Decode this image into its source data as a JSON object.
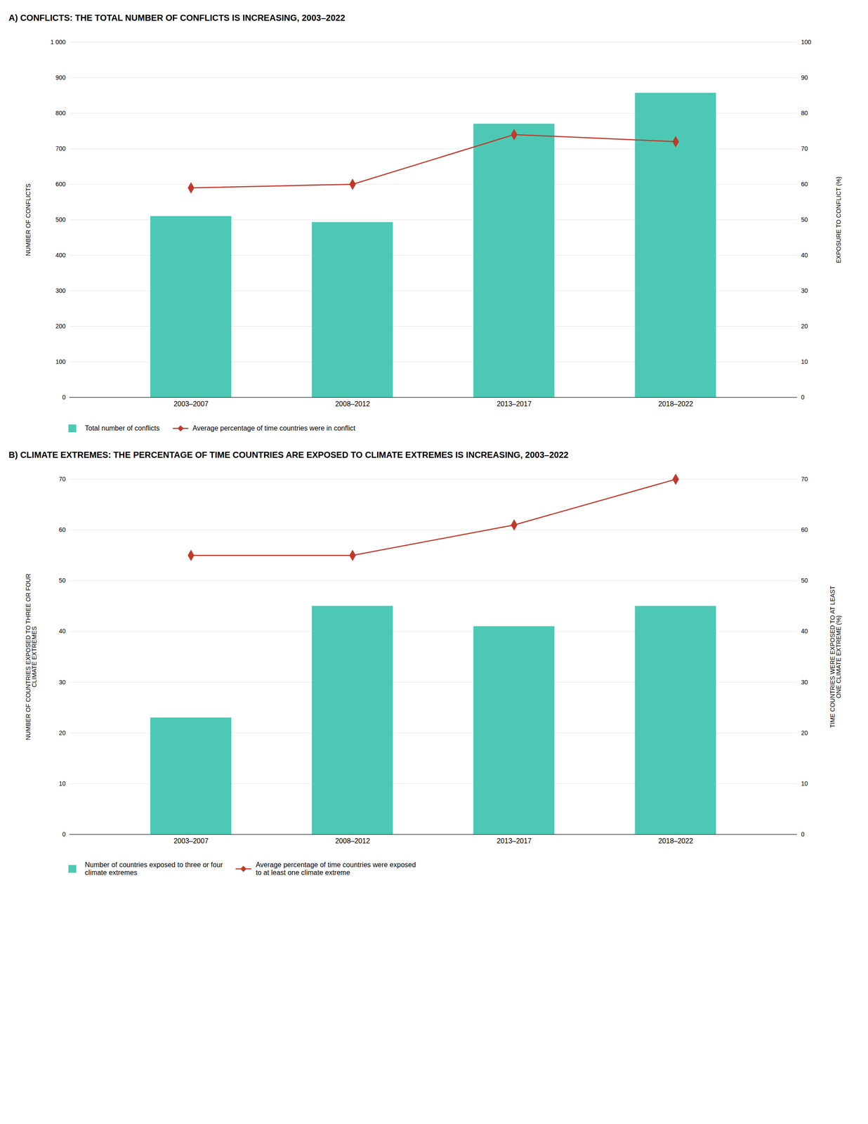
{
  "chart_data": [
    {
      "type": "bar",
      "title": "A) CONFLICTS: THE TOTAL NUMBER OF CONFLICTS IS INCREASING, 2003–2022",
      "categories": [
        "2003–2007",
        "2008–2012",
        "2013–2017",
        "2018–2022"
      ],
      "series": [
        {
          "name": "Total number of conflicts",
          "type": "bar",
          "color": "#4DC8B4",
          "values": [
            510,
            493,
            770,
            857
          ]
        },
        {
          "name": "Average percentage of time countries were in conflict",
          "type": "line",
          "color": "#C0392B",
          "marker": "diamond",
          "axis": "y2",
          "values": [
            59,
            60,
            74,
            72
          ]
        }
      ],
      "ylabel": "NUMBER OF CONFLICTS",
      "y2label": "EXPOSURE TO CONFLICT (%)",
      "ylim": [
        0,
        1000
      ],
      "yticks": [
        0,
        100,
        200,
        300,
        400,
        500,
        600,
        700,
        800,
        900,
        {
          "value": 1000,
          "label": "1 000"
        }
      ],
      "y2lim": [
        0,
        100
      ],
      "y2ticks": [
        0,
        10,
        20,
        30,
        40,
        50,
        60,
        70,
        80,
        90,
        100
      ],
      "grid": true,
      "legend": "bottom"
    },
    {
      "type": "bar",
      "title": "B) CLIMATE EXTREMES: THE PERCENTAGE OF TIME COUNTRIES ARE EXPOSED TO CLIMATE EXTREMES IS INCREASING, 2003–2022",
      "categories": [
        "2003–2007",
        "2008–2012",
        "2013–2017",
        "2018–2022"
      ],
      "series": [
        {
          "name": "Number of countries exposed to three or four\nclimate extremes",
          "type": "bar",
          "color": "#4DC8B4",
          "values": [
            23,
            45,
            41,
            45
          ]
        },
        {
          "name": "Average percentage of time countries were exposed\nto at least one climate extreme",
          "type": "line",
          "color": "#C0392B",
          "marker": "diamond",
          "axis": "y2",
          "values": [
            55,
            55,
            61,
            70
          ]
        }
      ],
      "ylabel": "NUMBER OF COUNTRIES EXPOSED TO THREE OR FOUR\nCLIMATE EXTREMES",
      "y2label": "TIME COUNTRIES WERE EXPOSED TO AT LEAST\nONE CLIMATE EXTREME (%)",
      "ylim": [
        0,
        70
      ],
      "yticks": [
        0,
        10,
        20,
        30,
        40,
        50,
        60,
        70
      ],
      "y2lim": [
        0,
        70
      ],
      "y2ticks": [
        0,
        10,
        20,
        30,
        40,
        50,
        60,
        70
      ],
      "grid": true,
      "legend": "bottom"
    }
  ]
}
